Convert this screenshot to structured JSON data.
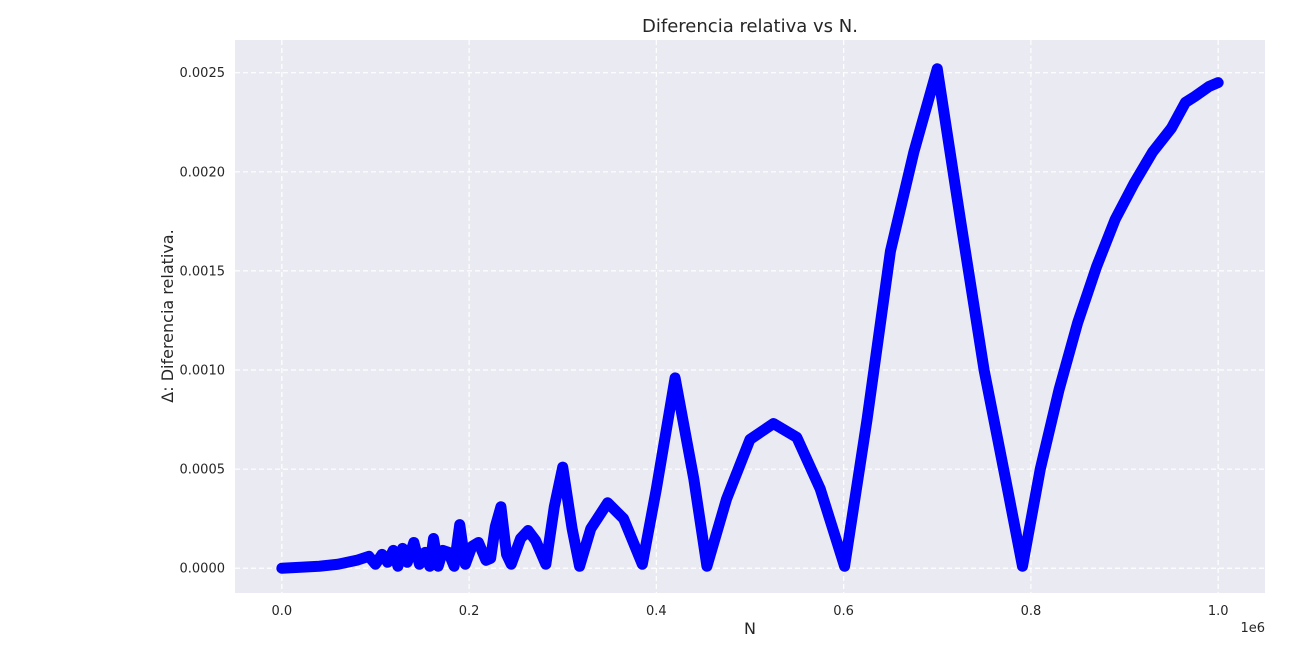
{
  "chart_data": {
    "type": "line",
    "title": "Diferencia relativa vs N.",
    "xlabel": "N",
    "ylabel": "Δ: Diferencia relativa.",
    "x_offset_label": "1e6",
    "xlim": [
      -0.05,
      1.05
    ],
    "ylim": [
      -0.000125,
      0.002665
    ],
    "xticks": [
      0.0,
      0.2,
      0.4,
      0.6,
      0.8,
      1.0
    ],
    "xtick_labels": [
      "0.0",
      "0.2",
      "0.4",
      "0.6",
      "0.8",
      "1.0"
    ],
    "yticks": [
      0.0,
      0.0005,
      0.001,
      0.0015,
      0.002,
      0.0025
    ],
    "ytick_labels": [
      "0.0000",
      "0.0005",
      "0.0010",
      "0.0015",
      "0.0020",
      "0.0025"
    ],
    "grid": true,
    "style": {
      "background": "#eaeaf2",
      "grid": "#ffffff",
      "marker_color": "#0000ff"
    },
    "series": [
      {
        "x": [
          0.0,
          0.02,
          0.04,
          0.06,
          0.08,
          0.093,
          0.1,
          0.107,
          0.113,
          0.119,
          0.124,
          0.129,
          0.134,
          0.141,
          0.147,
          0.153,
          0.158,
          0.162,
          0.167,
          0.172,
          0.178,
          0.184,
          0.19,
          0.196,
          0.203,
          0.21,
          0.218,
          0.223,
          0.228,
          0.234,
          0.24,
          0.245,
          0.255,
          0.263,
          0.271,
          0.282,
          0.291,
          0.3,
          0.31,
          0.318,
          0.33,
          0.348,
          0.365,
          0.385,
          0.4,
          0.42,
          0.44,
          0.454,
          0.475,
          0.5,
          0.525,
          0.55,
          0.575,
          0.601,
          0.625,
          0.65,
          0.675,
          0.7,
          0.725,
          0.75,
          0.775,
          0.791,
          0.81,
          0.83,
          0.85,
          0.87,
          0.89,
          0.91,
          0.93,
          0.95,
          0.965,
          0.975,
          0.99,
          1.0
        ],
        "y": [
          0.0,
          5e-06,
          1e-05,
          2e-05,
          4e-05,
          6e-05,
          2e-05,
          7e-05,
          3e-05,
          9e-05,
          1e-05,
          0.0001,
          3e-05,
          0.00013,
          2e-05,
          8e-05,
          1e-05,
          0.00015,
          1e-05,
          9e-05,
          8e-05,
          1e-05,
          0.00022,
          2e-05,
          0.00011,
          0.00013,
          4e-05,
          5e-05,
          0.00021,
          0.00031,
          7e-05,
          2e-05,
          0.00015,
          0.00019,
          0.00014,
          2e-05,
          0.00031,
          0.00051,
          0.0002,
          1e-05,
          0.0002,
          0.00033,
          0.00025,
          2e-05,
          0.0004,
          0.00096,
          0.00045,
          1e-05,
          0.00035,
          0.00065,
          0.00073,
          0.00066,
          0.0004,
          1e-05,
          0.00075,
          0.0016,
          0.0021,
          0.00252,
          0.00175,
          0.001,
          0.0004,
          1e-05,
          0.0005,
          0.0009,
          0.00124,
          0.00152,
          0.00176,
          0.00194,
          0.0021,
          0.00222,
          0.00235,
          0.00238,
          0.00243,
          0.00245
        ]
      }
    ]
  }
}
